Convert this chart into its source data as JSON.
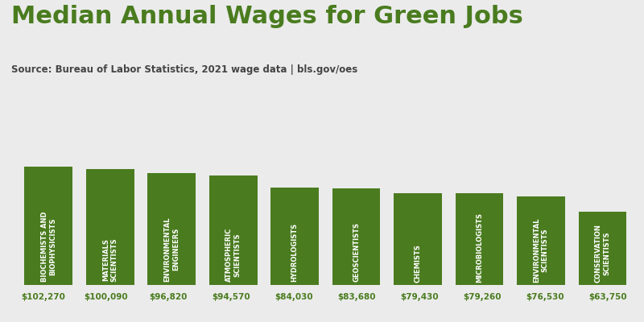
{
  "title": "Median Annual Wages for Green Jobs",
  "subtitle": "Source: Bureau of Labor Statistics, 2021 wage data | bls.gov/oes",
  "categories": [
    "BIOCHEMISTS AND\nBIOPHYSICISTS",
    "MATERIALS\nSCIENTISTS",
    "ENVIRONMENTAL\nENGINEERS",
    "ATMOSPHERIC\nSCIENTISTS",
    "HYDROLOGISTS",
    "GEOSCIENTISTS",
    "CHEMISTS",
    "MICROBIOLOGISTS",
    "ENVIRONMENTAL\nSCIENTISTS",
    "CONSERVATION\nSCIENTISTS"
  ],
  "values": [
    102270,
    100090,
    96820,
    94570,
    84030,
    83680,
    79430,
    79260,
    76530,
    63750
  ],
  "labels": [
    "$102,270",
    "$100,090",
    "$96,820",
    "$94,570",
    "$84,030",
    "$83,680",
    "$79,430",
    "$79,260",
    "$76,530",
    "$63,750"
  ],
  "bar_color": "#4a7c1f",
  "label_color": "#4a7c1f",
  "title_color": "#4a7c1f",
  "subtitle_color": "#444444",
  "background_color": "#ebebeb",
  "bar_text_color": "#ffffff",
  "ylim": [
    0,
    145000
  ],
  "figsize": [
    8.0,
    4.0
  ],
  "dpi": 100,
  "title_fontsize": 22,
  "subtitle_fontsize": 8.5,
  "bar_label_fontsize": 7.5,
  "bar_text_fontsize": 6.0
}
